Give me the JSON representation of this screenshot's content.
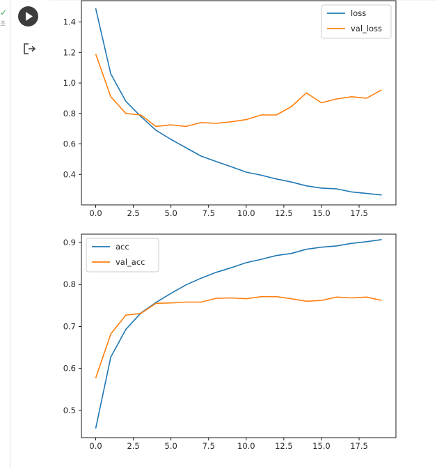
{
  "cell": {
    "status_icon": "check-icon",
    "status_color": "#34a853",
    "exec_label": "초",
    "run_icon": "play-icon",
    "output_icon": "output-exit-icon"
  },
  "chart_data": [
    {
      "type": "line",
      "title": "",
      "xlabel": "",
      "ylabel": "",
      "xlim": [
        -0.95,
        19.95
      ],
      "ylim": [
        0.2,
        1.54
      ],
      "xticks": [
        0,
        2.5,
        5,
        7.5,
        10,
        12.5,
        15,
        17.5
      ],
      "xtick_labels": [
        "0.0",
        "2.5",
        "5.0",
        "7.5",
        "10.0",
        "12.5",
        "15.0",
        "17.5"
      ],
      "yticks": [
        0.4,
        0.6,
        0.8,
        1.0,
        1.2,
        1.4
      ],
      "ytick_labels": [
        "0.4",
        "0.6",
        "0.8",
        "1.0",
        "1.2",
        "1.4"
      ],
      "legend_position": "top-right",
      "x": [
        0,
        1,
        2,
        3,
        4,
        5,
        6,
        7,
        8,
        9,
        10,
        11,
        12,
        13,
        14,
        15,
        16,
        17,
        18,
        19
      ],
      "series": [
        {
          "name": "loss",
          "color": "#1f77b4",
          "values": [
            1.49,
            1.06,
            0.88,
            0.78,
            0.69,
            0.63,
            0.575,
            0.52,
            0.485,
            0.45,
            0.415,
            0.395,
            0.37,
            0.35,
            0.325,
            0.31,
            0.305,
            0.285,
            0.275,
            0.265
          ]
        },
        {
          "name": "val_loss",
          "color": "#ff7f0e",
          "values": [
            1.19,
            0.91,
            0.8,
            0.79,
            0.715,
            0.725,
            0.715,
            0.74,
            0.735,
            0.745,
            0.76,
            0.79,
            0.79,
            0.845,
            0.935,
            0.87,
            0.895,
            0.91,
            0.9,
            0.955
          ]
        }
      ]
    },
    {
      "type": "line",
      "title": "",
      "xlabel": "",
      "ylabel": "",
      "xlim": [
        -0.95,
        19.95
      ],
      "ylim": [
        0.435,
        0.92
      ],
      "xticks": [
        0,
        2.5,
        5,
        7.5,
        10,
        12.5,
        15,
        17.5
      ],
      "xtick_labels": [
        "0.0",
        "2.5",
        "5.0",
        "7.5",
        "10.0",
        "12.5",
        "15.0",
        "17.5"
      ],
      "yticks": [
        0.5,
        0.6,
        0.7,
        0.8,
        0.9
      ],
      "ytick_labels": [
        "0.5",
        "0.6",
        "0.7",
        "0.8",
        "0.9"
      ],
      "legend_position": "top-left",
      "x": [
        0,
        1,
        2,
        3,
        4,
        5,
        6,
        7,
        8,
        9,
        10,
        11,
        12,
        13,
        14,
        15,
        16,
        17,
        18,
        19
      ],
      "series": [
        {
          "name": "acc",
          "color": "#1f77b4",
          "values": [
            0.457,
            0.627,
            0.693,
            0.732,
            0.757,
            0.779,
            0.799,
            0.815,
            0.829,
            0.84,
            0.852,
            0.86,
            0.869,
            0.874,
            0.884,
            0.889,
            0.892,
            0.898,
            0.902,
            0.907
          ]
        },
        {
          "name": "val_acc",
          "color": "#ff7f0e",
          "values": [
            0.577,
            0.682,
            0.727,
            0.731,
            0.755,
            0.756,
            0.758,
            0.758,
            0.767,
            0.768,
            0.766,
            0.771,
            0.771,
            0.766,
            0.76,
            0.762,
            0.77,
            0.768,
            0.77,
            0.762
          ]
        }
      ]
    }
  ]
}
